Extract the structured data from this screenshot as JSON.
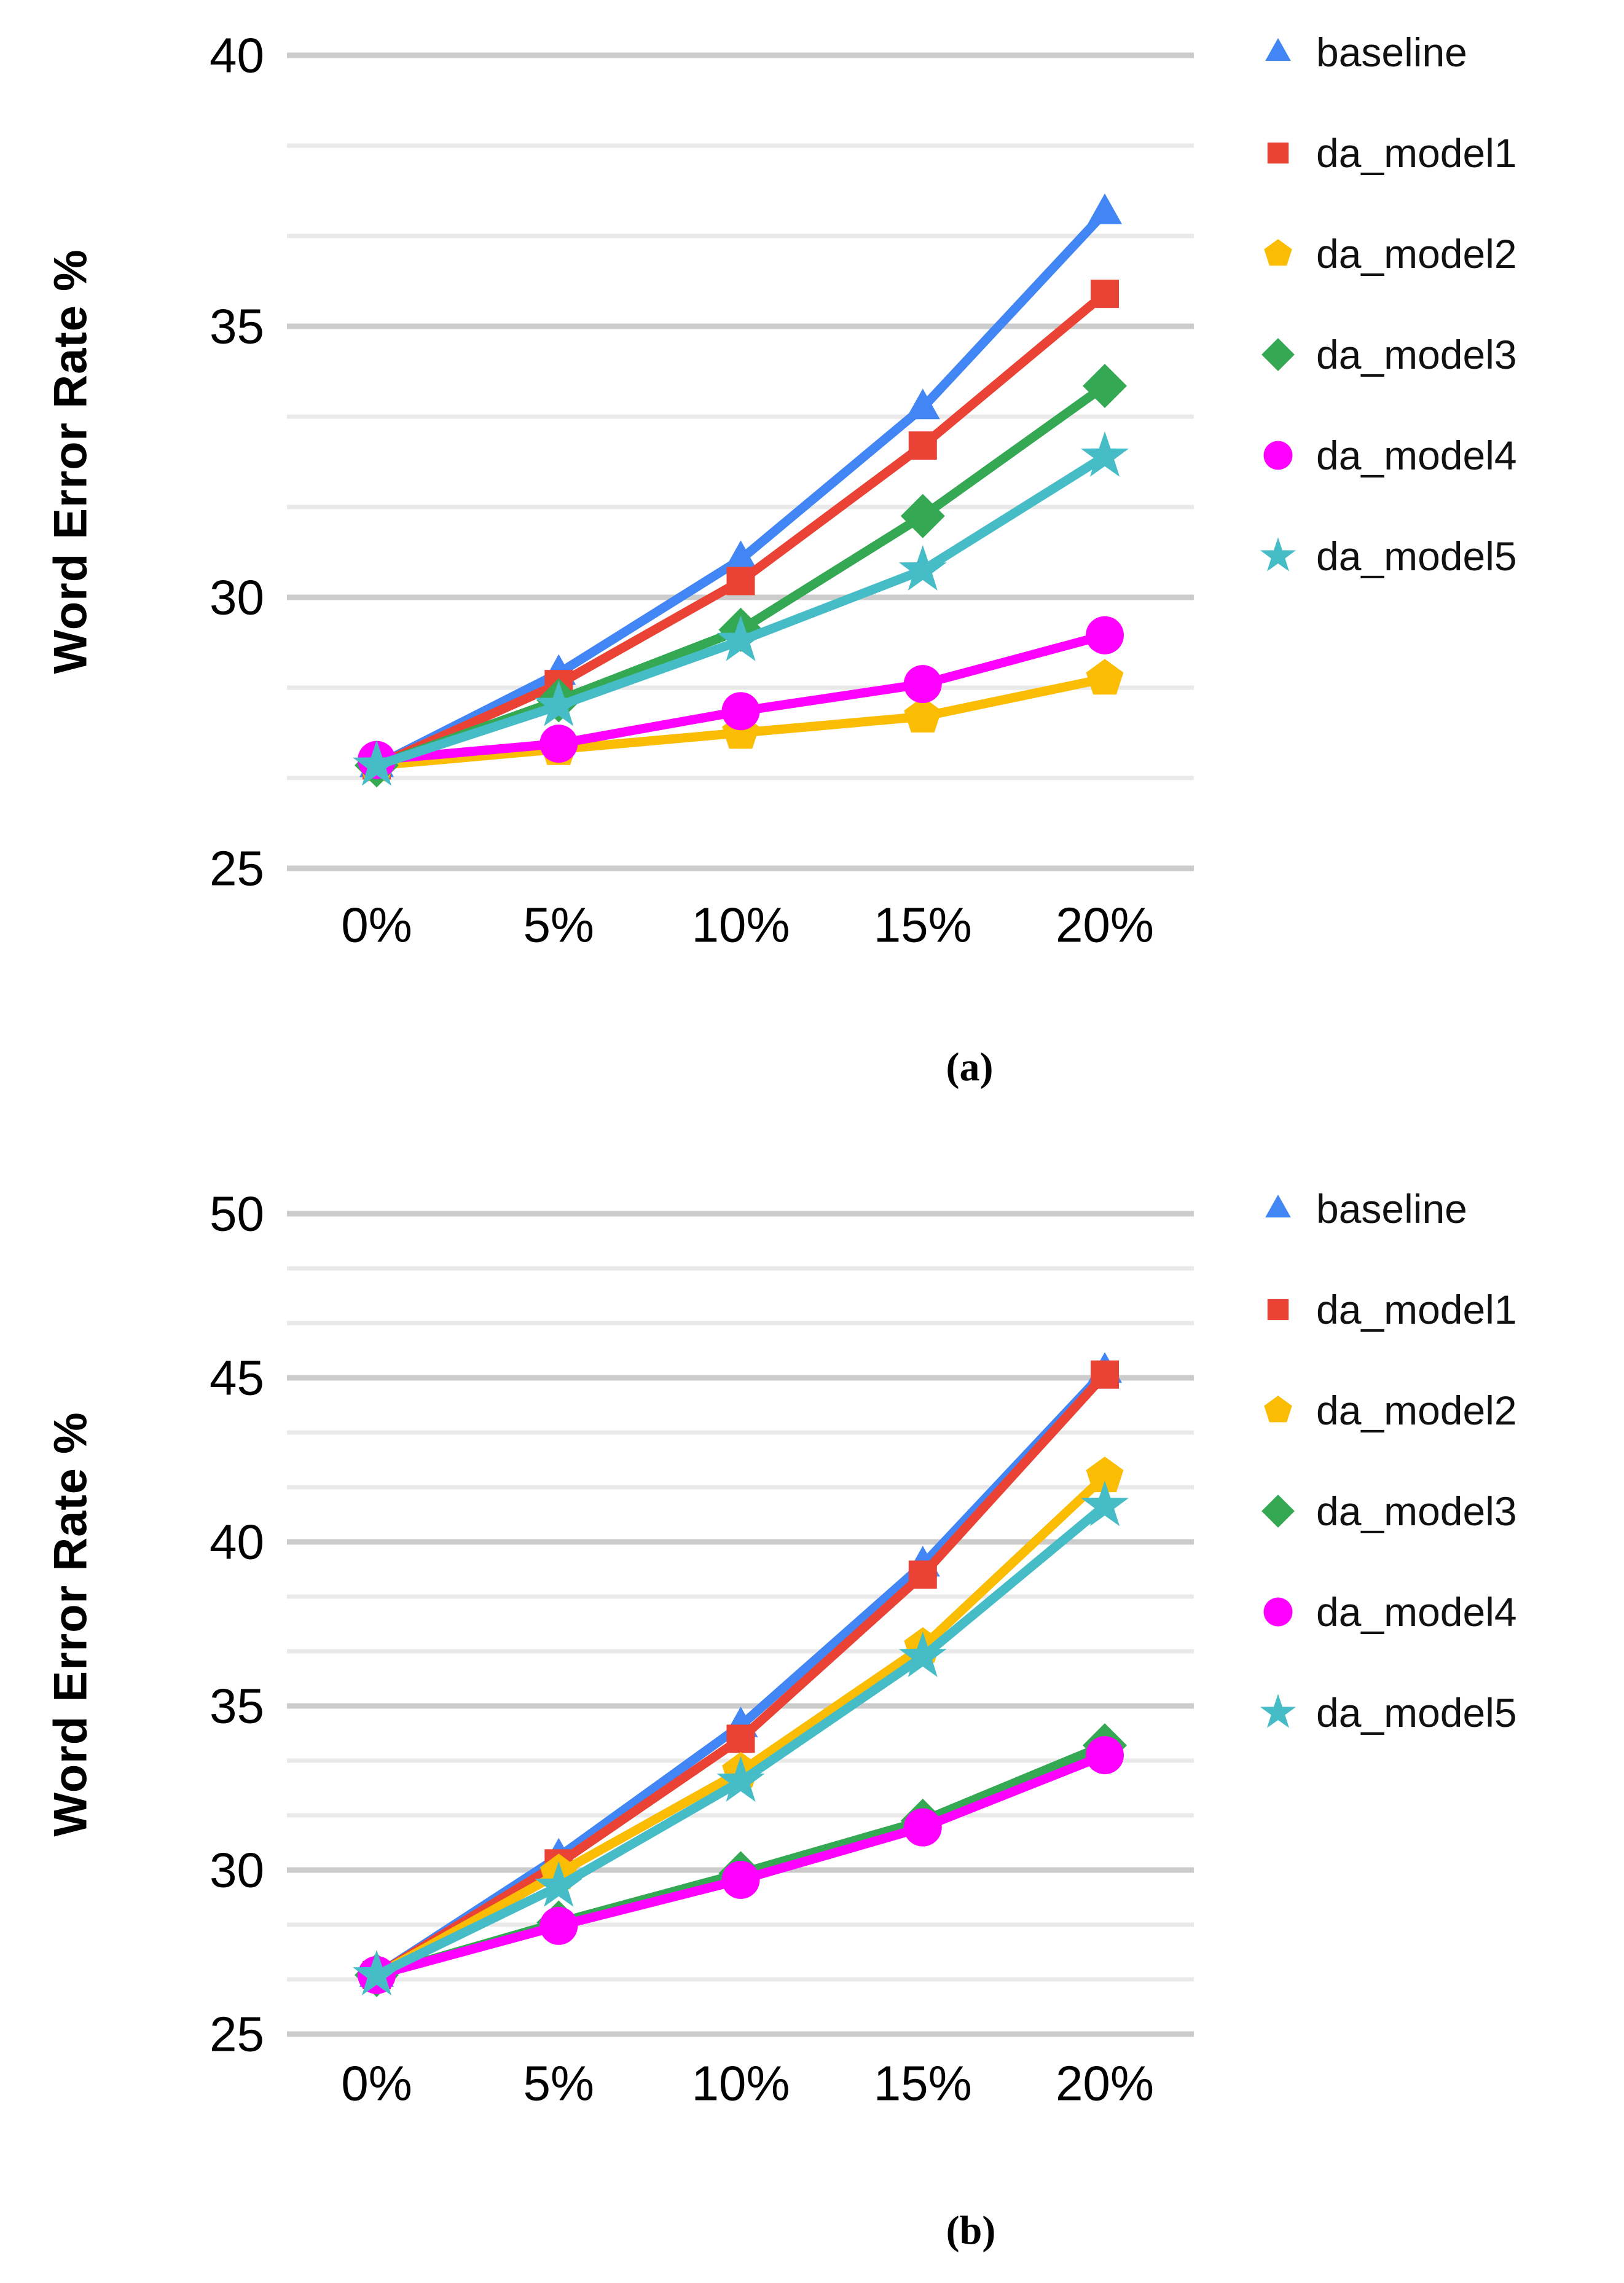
{
  "figure": {
    "background_color": "#ffffff",
    "text_color": "#000000",
    "major_grid_color": "#cccccc",
    "minor_grid_color": "#e9e9e9"
  },
  "chart_data": [
    {
      "id": "a",
      "type": "line",
      "title": "",
      "xlabel": "",
      "ylabel": "Word Error Rate %",
      "subfigure_label": "(a)",
      "x_tick_labels": [
        "0%",
        "5%",
        "10%",
        "15%",
        "20%"
      ],
      "ylim": [
        25,
        40
      ],
      "y_major_ticks": [
        25,
        30,
        35,
        40
      ],
      "minor_grid_step": 1.6667,
      "grid": "on",
      "legend_position": "right",
      "series": [
        {
          "name": "baseline",
          "marker": "triangle-up-icon",
          "color": "#4285F4",
          "values": [
            26.9,
            28.6,
            30.7,
            33.5,
            37.1
          ]
        },
        {
          "name": "da_model1",
          "marker": "square-icon",
          "color": "#EA4335",
          "values": [
            26.9,
            28.4,
            30.3,
            32.8,
            35.6
          ]
        },
        {
          "name": "da_model2",
          "marker": "pentagon-icon",
          "color": "#FBBC04",
          "values": [
            26.9,
            27.2,
            27.5,
            27.8,
            28.5
          ]
        },
        {
          "name": "da_model3",
          "marker": "diamond-icon",
          "color": "#34A853",
          "values": [
            26.9,
            28.1,
            29.4,
            31.5,
            33.9
          ]
        },
        {
          "name": "da_model4",
          "marker": "circle-icon",
          "color": "#FF00FF",
          "values": [
            27.0,
            27.3,
            27.9,
            28.4,
            29.3
          ]
        },
        {
          "name": "da_model5",
          "marker": "star-icon",
          "color": "#46BDC6",
          "values": [
            26.9,
            28.0,
            29.2,
            30.5,
            32.6
          ]
        }
      ]
    },
    {
      "id": "b",
      "type": "line",
      "title": "",
      "xlabel": "",
      "ylabel": "Word Error Rate %",
      "subfigure_label": "(b)",
      "x_tick_labels": [
        "0%",
        "5%",
        "10%",
        "15%",
        "20%"
      ],
      "ylim": [
        25,
        50
      ],
      "y_major_ticks": [
        25,
        30,
        35,
        40,
        45,
        50
      ],
      "minor_grid_step": 1.6667,
      "grid": "on",
      "legend_position": "right",
      "series": [
        {
          "name": "baseline",
          "marker": "triangle-up-icon",
          "color": "#4285F4",
          "values": [
            26.8,
            30.4,
            34.4,
            39.3,
            45.2
          ]
        },
        {
          "name": "da_model1",
          "marker": "square-icon",
          "color": "#EA4335",
          "values": [
            26.8,
            30.2,
            34.0,
            39.0,
            45.1
          ]
        },
        {
          "name": "da_model2",
          "marker": "pentagon-icon",
          "color": "#FBBC04",
          "values": [
            26.8,
            29.9,
            33.0,
            36.8,
            42.0
          ]
        },
        {
          "name": "da_model3",
          "marker": "diamond-icon",
          "color": "#34A853",
          "values": [
            26.8,
            28.4,
            29.9,
            31.5,
            33.8
          ]
        },
        {
          "name": "da_model4",
          "marker": "circle-icon",
          "color": "#FF00FF",
          "values": [
            26.8,
            28.3,
            29.7,
            31.3,
            33.5
          ]
        },
        {
          "name": "da_model5",
          "marker": "star-icon",
          "color": "#46BDC6",
          "values": [
            26.8,
            29.5,
            32.7,
            36.5,
            41.1
          ]
        }
      ]
    }
  ]
}
